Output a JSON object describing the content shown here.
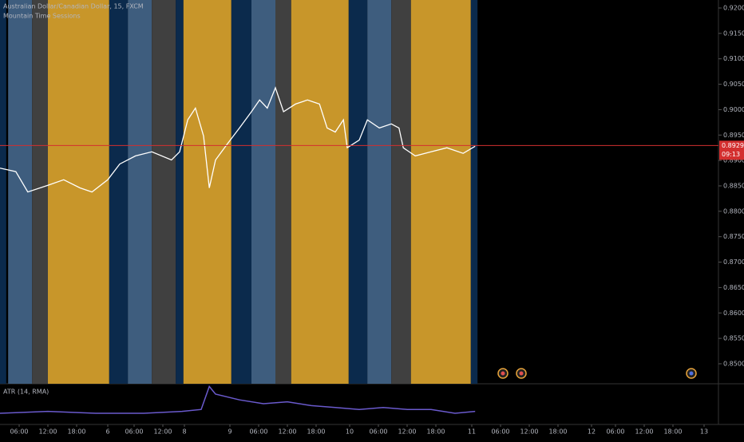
{
  "chart_data": [
    {
      "type": "line",
      "title": "Australian Dollar/Canadian Dollar, 15, FXCM",
      "subtitle": "Mountain Time Sessions",
      "xlim": [
        0,
        150
      ],
      "ylim": [
        0.84607,
        0.92157
      ],
      "yticks": [
        {
          "value": 0.92,
          "label": "0.92000"
        },
        {
          "value": 0.915,
          "label": "0.91500"
        },
        {
          "value": 0.91,
          "label": "0.91000"
        },
        {
          "value": 0.905,
          "label": "0.90500"
        },
        {
          "value": 0.9,
          "label": "0.90000"
        },
        {
          "value": 0.895,
          "label": "0.89500"
        },
        {
          "value": 0.89,
          "label": "0.89000"
        },
        {
          "value": 0.885,
          "label": "0.88500"
        },
        {
          "value": 0.88,
          "label": "0.88000"
        },
        {
          "value": 0.875,
          "label": "0.87500"
        },
        {
          "value": 0.87,
          "label": "0.87000"
        },
        {
          "value": 0.865,
          "label": "0.86500"
        },
        {
          "value": 0.86,
          "label": "0.86000"
        },
        {
          "value": 0.855,
          "label": "0.85500"
        },
        {
          "value": 0.85,
          "label": "0.85000"
        }
      ],
      "xticks": [
        {
          "value": 4,
          "label": "06:00"
        },
        {
          "value": 10,
          "label": "12:00"
        },
        {
          "value": 16,
          "label": "18:00"
        },
        {
          "value": 22.5,
          "label": "6"
        },
        {
          "value": 28,
          "label": "06:00"
        },
        {
          "value": 34,
          "label": "12:00"
        },
        {
          "value": 38.5,
          "label": "8"
        },
        {
          "value": 48,
          "label": "9"
        },
        {
          "value": 54,
          "label": "06:00"
        },
        {
          "value": 60,
          "label": "12:00"
        },
        {
          "value": 66,
          "label": "18:00"
        },
        {
          "value": 73,
          "label": "10"
        },
        {
          "value": 79,
          "label": "06:00"
        },
        {
          "value": 85,
          "label": "12:00"
        },
        {
          "value": 91,
          "label": "18:00"
        },
        {
          "value": 98.5,
          "label": "11"
        },
        {
          "value": 104.5,
          "label": "06:00"
        },
        {
          "value": 110.5,
          "label": "12:00"
        },
        {
          "value": 116.5,
          "label": "18:00"
        },
        {
          "value": 123.5,
          "label": "12"
        },
        {
          "value": 128.5,
          "label": "06:00"
        },
        {
          "value": 134.5,
          "label": "12:00"
        },
        {
          "value": 140.5,
          "label": "18:00"
        },
        {
          "value": 147,
          "label": "13"
        }
      ],
      "sessions": [
        {
          "start": 0,
          "end": 1.3,
          "color": "#0b2a4c"
        },
        {
          "start": 1.7,
          "end": 6.7,
          "color": "#3e5d7e"
        },
        {
          "start": 6.7,
          "end": 10,
          "color": "#404040"
        },
        {
          "start": 10,
          "end": 22.8,
          "color": "#c8962a"
        },
        {
          "start": 22.8,
          "end": 26.7,
          "color": "#0b2a4c"
        },
        {
          "start": 26.7,
          "end": 31.7,
          "color": "#3e5d7e"
        },
        {
          "start": 31.7,
          "end": 36.7,
          "color": "#404040"
        },
        {
          "start": 36.7,
          "end": 38.3,
          "color": "#0b2a4c"
        },
        {
          "start": 38.3,
          "end": 48.3,
          "color": "#c8962a"
        },
        {
          "start": 48.3,
          "end": 52.5,
          "color": "#0b2a4c"
        },
        {
          "start": 52.5,
          "end": 57.5,
          "color": "#3e5d7e"
        },
        {
          "start": 57.5,
          "end": 60.8,
          "color": "#404040"
        },
        {
          "start": 60.8,
          "end": 72.8,
          "color": "#c8962a"
        },
        {
          "start": 72.8,
          "end": 76.7,
          "color": "#0b2a4c"
        },
        {
          "start": 76.7,
          "end": 81.7,
          "color": "#3e5d7e"
        },
        {
          "start": 81.7,
          "end": 85.8,
          "color": "#404040"
        },
        {
          "start": 85.8,
          "end": 98.3,
          "color": "#c8962a"
        },
        {
          "start": 98.3,
          "end": 99.7,
          "color": "#0b2a4c"
        }
      ],
      "series": [
        {
          "color": "#ffffff",
          "x": [
            0,
            3.3,
            5.8,
            10,
            13.3,
            16.7,
            19.2,
            22.5,
            25,
            28.3,
            31.7,
            35.8,
            37.5,
            39.2,
            40.8,
            42.5,
            43.7,
            45,
            47.5,
            50,
            52.5,
            54.2,
            55.8,
            57.5,
            59.2,
            61.7,
            64.2,
            66.7,
            68.3,
            70,
            71.7,
            72.5,
            75,
            76.7,
            79.2,
            81.7,
            83.3,
            84.2,
            86.7,
            90,
            93.3,
            96.7,
            99.2
          ],
          "values": [
            0.8885,
            0.8878,
            0.8838,
            0.8851,
            0.8862,
            0.8846,
            0.8838,
            0.8862,
            0.8893,
            0.8909,
            0.8917,
            0.8901,
            0.8917,
            0.898,
            0.9003,
            0.8948,
            0.8846,
            0.8901,
            0.8933,
            0.8964,
            0.8996,
            0.9019,
            0.9003,
            0.9043,
            0.8996,
            0.9011,
            0.9019,
            0.9011,
            0.8964,
            0.8956,
            0.898,
            0.8925,
            0.894,
            0.898,
            0.8964,
            0.8972,
            0.8964,
            0.8925,
            0.8909,
            0.8917,
            0.8925,
            0.8914,
            0.8928
          ]
        }
      ],
      "last_price": 0.89295,
      "countdown": "09:13",
      "last_price_color": "#d32f2f"
    },
    {
      "type": "line",
      "title": "ATR (14, RMA)",
      "xlim": [
        0,
        150
      ],
      "ylim": [
        0,
        0.002
      ],
      "series": [
        {
          "color": "#6a5acd",
          "x": [
            0,
            10,
            20,
            30,
            38,
            42,
            43.7,
            45,
            50,
            55,
            60,
            65,
            70,
            75,
            80,
            85,
            90,
            95,
            99.2
          ],
          "values": [
            0.0005,
            0.0006,
            0.0005,
            0.0005,
            0.0006,
            0.0007,
            0.0019,
            0.0015,
            0.0012,
            0.001,
            0.0011,
            0.0009,
            0.0008,
            0.0007,
            0.0008,
            0.0007,
            0.0007,
            0.0005,
            0.0006
          ]
        }
      ]
    }
  ]
}
